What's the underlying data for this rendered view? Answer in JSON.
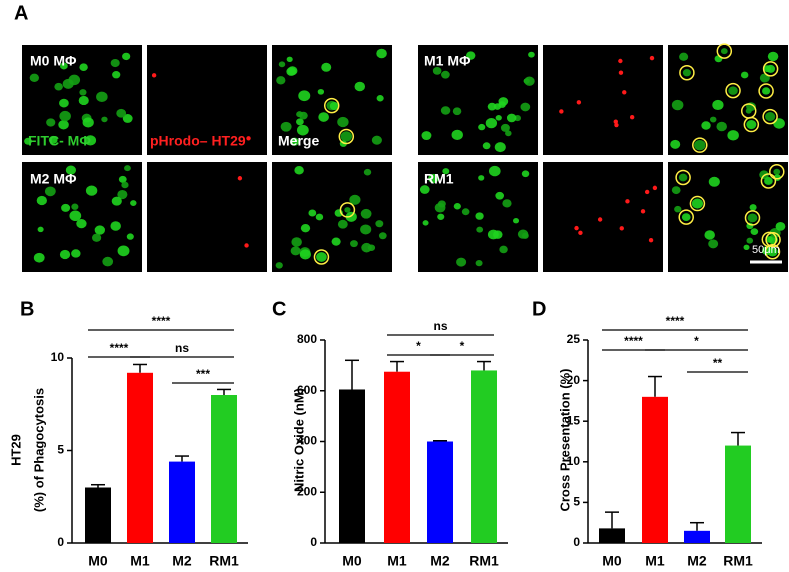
{
  "panel_a": {
    "label": "A",
    "image_labels": [
      "M0 MΦ",
      "FITC- MΦ",
      "pHrodo– HT29",
      "Merge",
      "M1 MΦ",
      "M2 MΦ",
      "RM1"
    ],
    "scale_bar": "50μm"
  },
  "chart_data": [
    {
      "type": "bar",
      "panel": "B",
      "y_label": [
        "HT29",
        "(%) of Phagocytosis"
      ],
      "categories": [
        "M0",
        "M1",
        "M2",
        "RM1"
      ],
      "values": [
        3.0,
        9.2,
        4.4,
        8.0
      ],
      "errors": [
        0.15,
        0.45,
        0.3,
        0.3
      ],
      "colors": [
        "#000000",
        "#ff0000",
        "#0000ff",
        "#22cc22"
      ],
      "ylim": [
        0,
        10
      ],
      "yticks": [
        0,
        5,
        10
      ],
      "annotations": [
        {
          "label": "****",
          "between": [
            "M0",
            "RM1"
          ]
        },
        {
          "label": "****",
          "between": [
            "M0",
            "M1"
          ]
        },
        {
          "label": "ns",
          "between": [
            "M1",
            "RM1"
          ]
        },
        {
          "label": "***",
          "between": [
            "M2",
            "RM1"
          ]
        }
      ]
    },
    {
      "type": "bar",
      "panel": "C",
      "y_label": [
        "Nitric Oxide (nM)"
      ],
      "categories": [
        "M0",
        "M1",
        "M2",
        "RM1"
      ],
      "values": [
        605,
        675,
        400,
        680
      ],
      "errors": [
        115,
        40,
        3,
        35
      ],
      "colors": [
        "#000000",
        "#ff0000",
        "#0000ff",
        "#22cc22"
      ],
      "ylim": [
        0,
        800
      ],
      "yticks": [
        0,
        200,
        400,
        600,
        800
      ],
      "annotations": [
        {
          "label": "ns",
          "between": [
            "M1",
            "RM1"
          ]
        },
        {
          "label": "*",
          "between": [
            "M1",
            "M2"
          ]
        },
        {
          "label": "*",
          "between": [
            "M2",
            "RM1"
          ]
        }
      ]
    },
    {
      "type": "bar",
      "panel": "D",
      "y_label": [
        "Cross Presentation (%)"
      ],
      "categories": [
        "M0",
        "M1",
        "M2",
        "RM1"
      ],
      "values": [
        1.8,
        18,
        1.5,
        12
      ],
      "errors": [
        2.0,
        2.5,
        1.0,
        1.6
      ],
      "colors": [
        "#000000",
        "#ff0000",
        "#0000ff",
        "#22cc22"
      ],
      "ylim": [
        0,
        25
      ],
      "yticks": [
        0,
        5,
        10,
        15,
        20,
        25
      ],
      "annotations": [
        {
          "label": "****",
          "between": [
            "M0",
            "RM1"
          ]
        },
        {
          "label": "****",
          "between": [
            "M0",
            "M1"
          ]
        },
        {
          "label": "*",
          "between": [
            "M1",
            "RM1"
          ]
        },
        {
          "label": "**",
          "between": [
            "M2",
            "RM1"
          ]
        }
      ]
    }
  ]
}
